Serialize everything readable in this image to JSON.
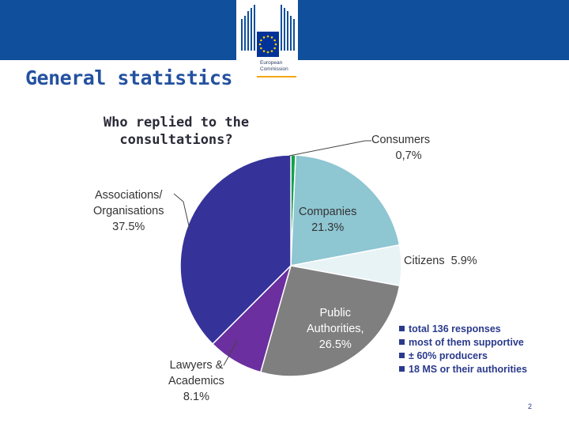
{
  "header": {
    "logo_line1": "European",
    "logo_line2": "Commission",
    "colors": {
      "band": "#0f4f9b",
      "flag": "#003399",
      "stars": "#ffcc00",
      "accent": "#f3a712"
    }
  },
  "slide": {
    "title": "General statistics",
    "page_number": "2"
  },
  "chart_data": {
    "type": "pie",
    "title": "Who replied to the consultations?",
    "slices": [
      {
        "name": "Consumers",
        "value_label": "0,7%",
        "value": 0.7,
        "color": "#12a34a"
      },
      {
        "name": "Companies",
        "value_label": "21.3%",
        "value": 21.3,
        "color": "#8ec6d2"
      },
      {
        "name": "Citizens",
        "value_label": "5.9%",
        "value": 5.9,
        "color": "#e8f3f6"
      },
      {
        "name": "Public Authorities,",
        "value_label": "26.5%",
        "value": 26.5,
        "color": "#7f7f7f"
      },
      {
        "name": "Lawyers &",
        "name2": "Academics",
        "value_label": "8.1%",
        "value": 8.1,
        "color": "#6b2f9f"
      },
      {
        "name": "Associations/",
        "name2": "Organisations",
        "value_label": "37.5%",
        "value": 37.5,
        "color": "#353399"
      }
    ],
    "notes": [
      "total 136 responses",
      "most of them supportive",
      "± 60%  producers",
      "18 MS  or their authorities"
    ]
  }
}
